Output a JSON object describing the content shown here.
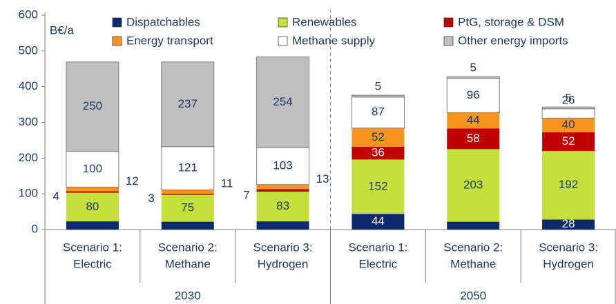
{
  "chart_data": {
    "type": "stacked_bar",
    "y_axis_label": "B€/a",
    "categories": [
      [
        "Scenario 1:",
        "Electric"
      ],
      [
        "Scenario 2:",
        "Methane"
      ],
      [
        "Scenario 3:",
        "Hydrogen"
      ],
      [
        "Scenario 1:",
        "Electric"
      ],
      [
        "Scenario 2:",
        "Methane"
      ],
      [
        "Scenario 3:",
        "Hydrogen"
      ]
    ],
    "group_labels": [
      "2030",
      "2050"
    ],
    "series": [
      {
        "name": "Dispatchables",
        "color": "#0d2a6b",
        "values": [
          23,
          22,
          23,
          44,
          22,
          28
        ]
      },
      {
        "name": "Renewables",
        "color": "#c5e03a",
        "values": [
          80,
          75,
          83,
          152,
          203,
          192
        ]
      },
      {
        "name": "PtG, storage & DSM",
        "color": "#c00000",
        "values": [
          4,
          3,
          7,
          36,
          58,
          52
        ]
      },
      {
        "name": "Energy transport",
        "color": "#f7941d",
        "values": [
          12,
          11,
          13,
          52,
          44,
          40
        ]
      },
      {
        "name": "Methane supply",
        "color": "#ffffff",
        "values": [
          100,
          121,
          103,
          87,
          96,
          26
        ]
      },
      {
        "name": "Other energy imports",
        "color": "#bfbfbf",
        "values": [
          250,
          237,
          254,
          5,
          5,
          5
        ]
      }
    ],
    "ylim": [
      0,
      600
    ],
    "yticks": [
      0,
      100,
      200,
      300,
      400,
      500,
      600
    ],
    "grid": false
  }
}
